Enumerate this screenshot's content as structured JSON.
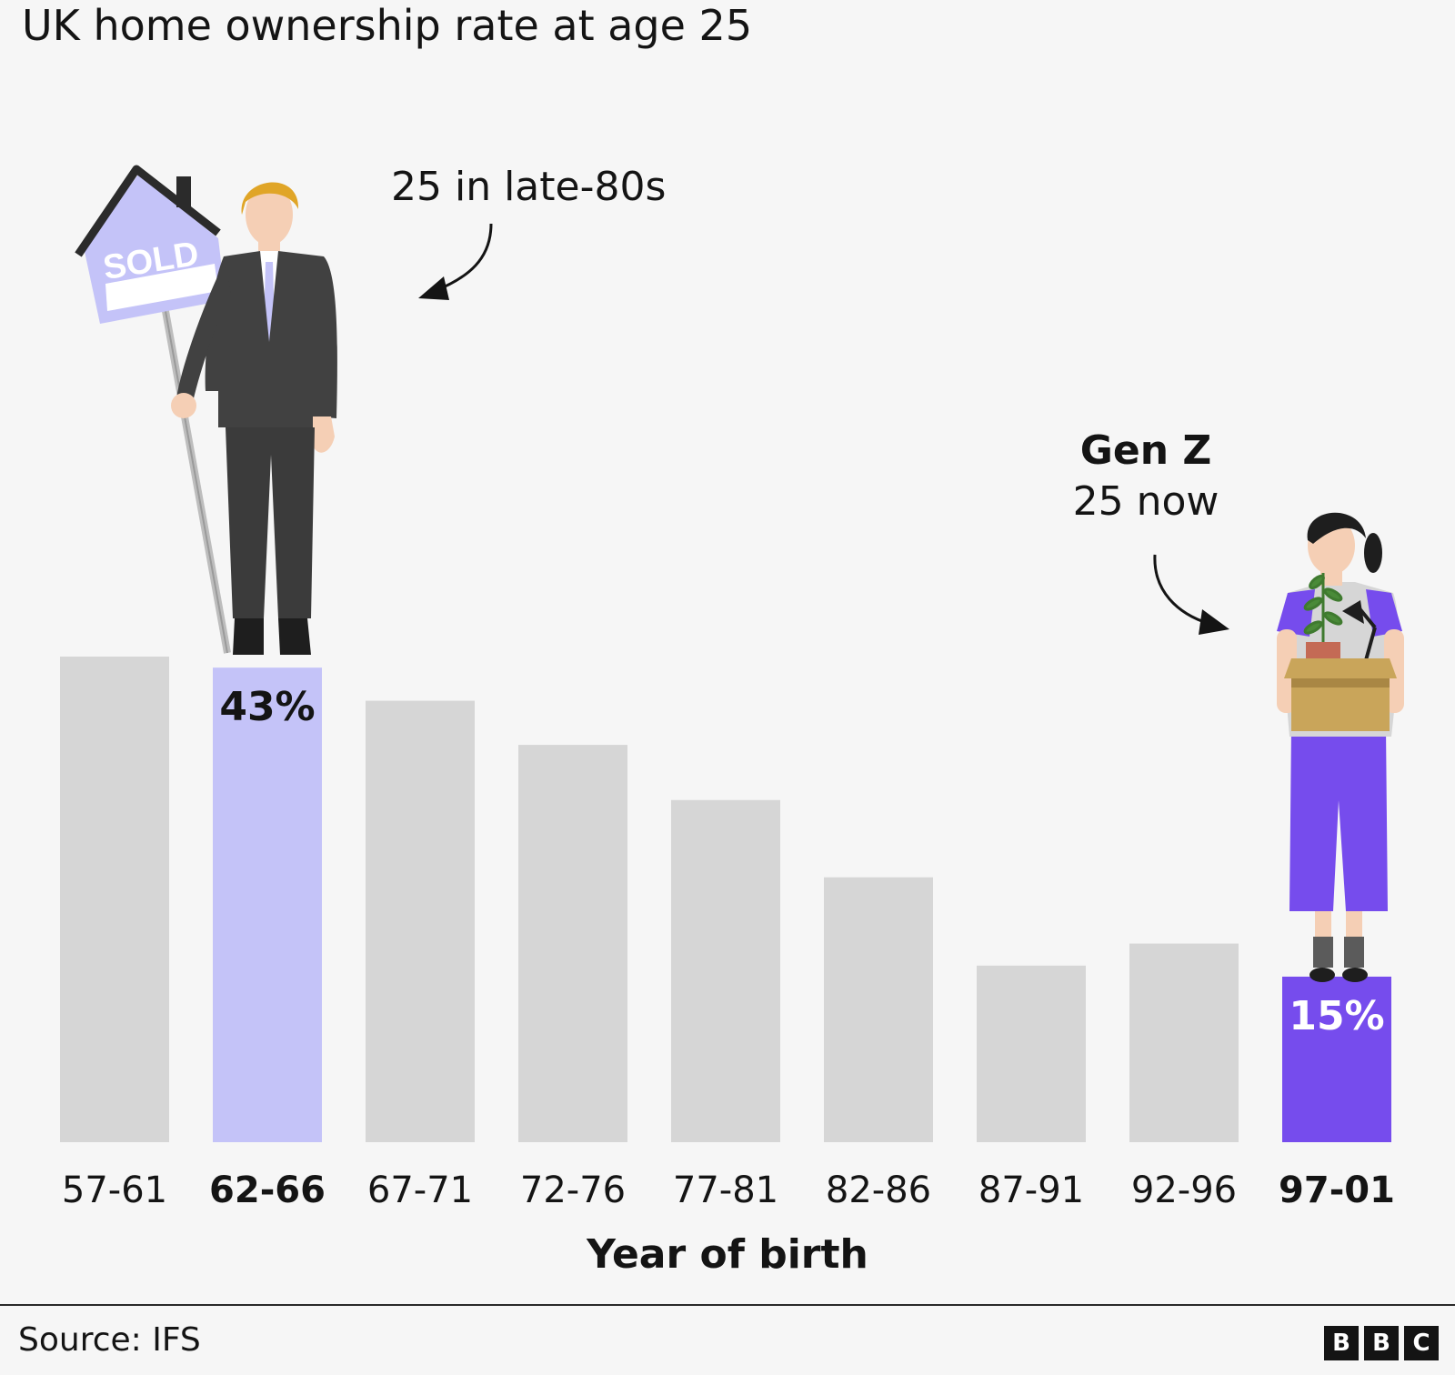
{
  "title": "UK home ownership rate at age 25",
  "annotations": {
    "late80s": "25 in late-80s",
    "genz_title": "Gen Z",
    "genz_sub": "25 now"
  },
  "sold_sign": "SOLD",
  "source": "Source: IFS",
  "logo": [
    "B",
    "B",
    "C"
  ],
  "colors": {
    "bar_default": "#d6d6d6",
    "bar_highlight_light": "#c4c3f8",
    "bar_highlight_dark": "#764ced",
    "background": "#f6f6f6"
  },
  "chart_data": {
    "type": "bar",
    "title": "UK home ownership rate at age 25",
    "xlabel": "Year of birth",
    "ylabel": "",
    "categories": [
      "57-61",
      "62-66",
      "67-71",
      "72-76",
      "77-81",
      "82-86",
      "87-91",
      "92-96",
      "97-01"
    ],
    "values": [
      44,
      43,
      40,
      36,
      31,
      24,
      16,
      18,
      15
    ],
    "data_labels": [
      {
        "category": "62-66",
        "text": "43%"
      },
      {
        "category": "97-01",
        "text": "15%"
      }
    ],
    "highlight": {
      "62-66": "light",
      "97-01": "dark"
    },
    "bold_categories": [
      "62-66",
      "97-01"
    ],
    "ylim": [
      0,
      44
    ],
    "grid": false,
    "legend": "none"
  }
}
